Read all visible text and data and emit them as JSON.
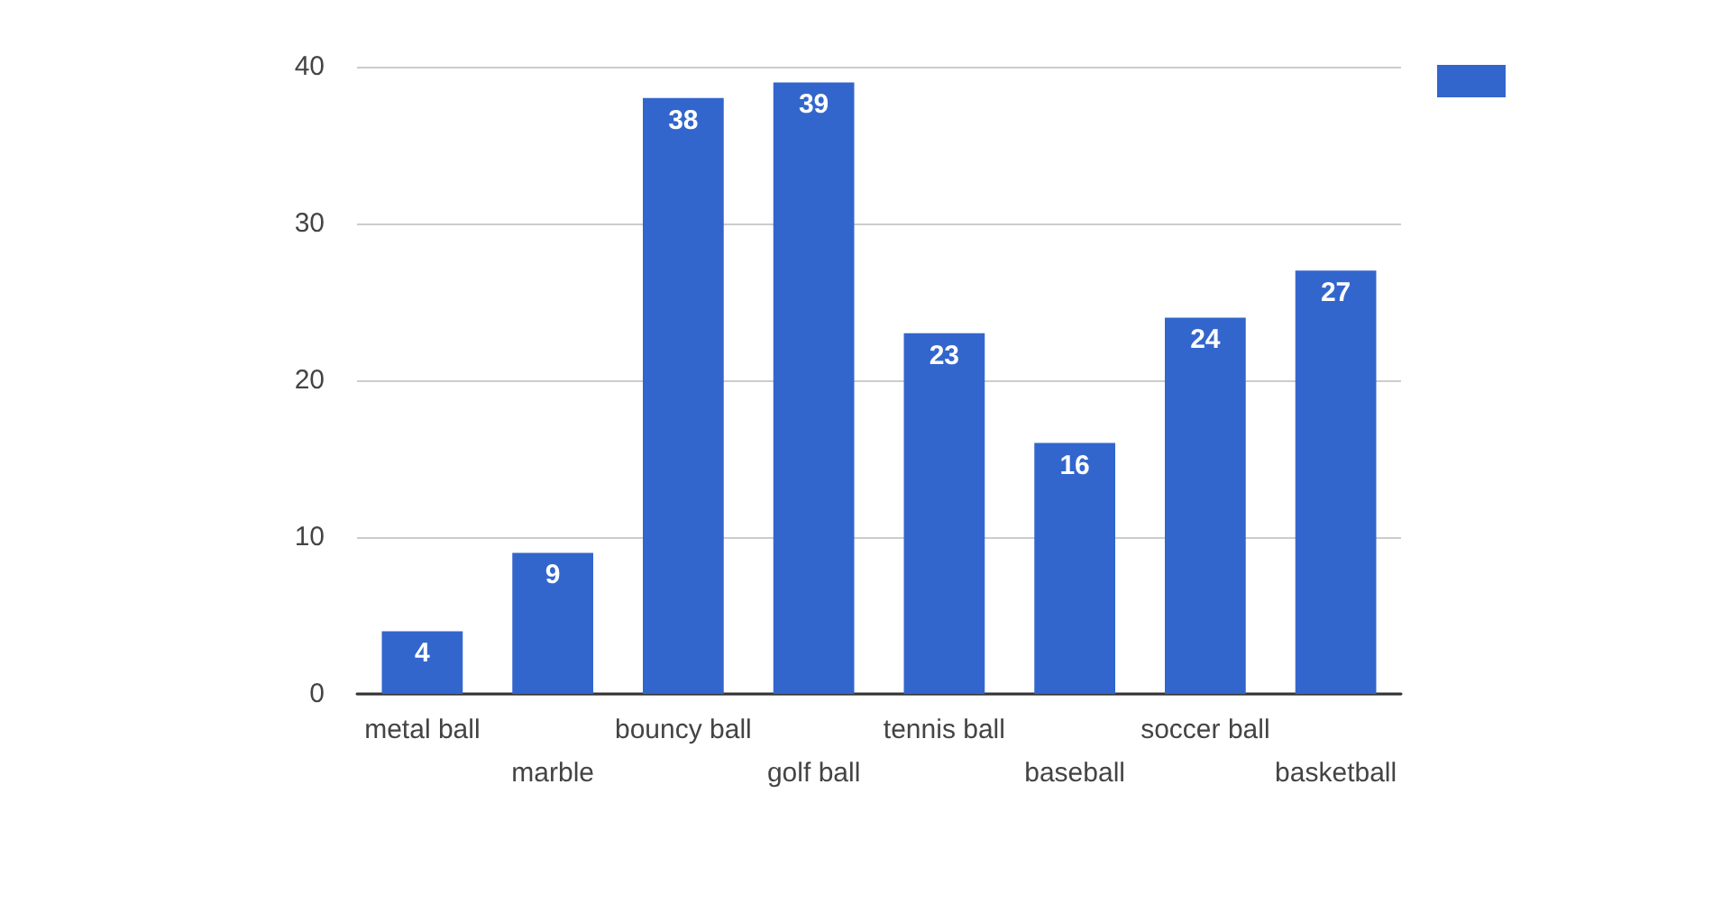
{
  "chart_data": {
    "type": "bar",
    "categories": [
      "metal ball",
      "marble",
      "bouncy ball",
      "golf ball",
      "tennis ball",
      "baseball",
      "soccer ball",
      "basketball"
    ],
    "values": [
      4,
      9,
      38,
      39,
      23,
      16,
      24,
      27
    ],
    "color": "#3366cc",
    "ylim": [
      0,
      40
    ],
    "yticks": [
      0,
      10,
      20,
      30,
      40
    ],
    "grid": "y",
    "data_labels": true
  }
}
